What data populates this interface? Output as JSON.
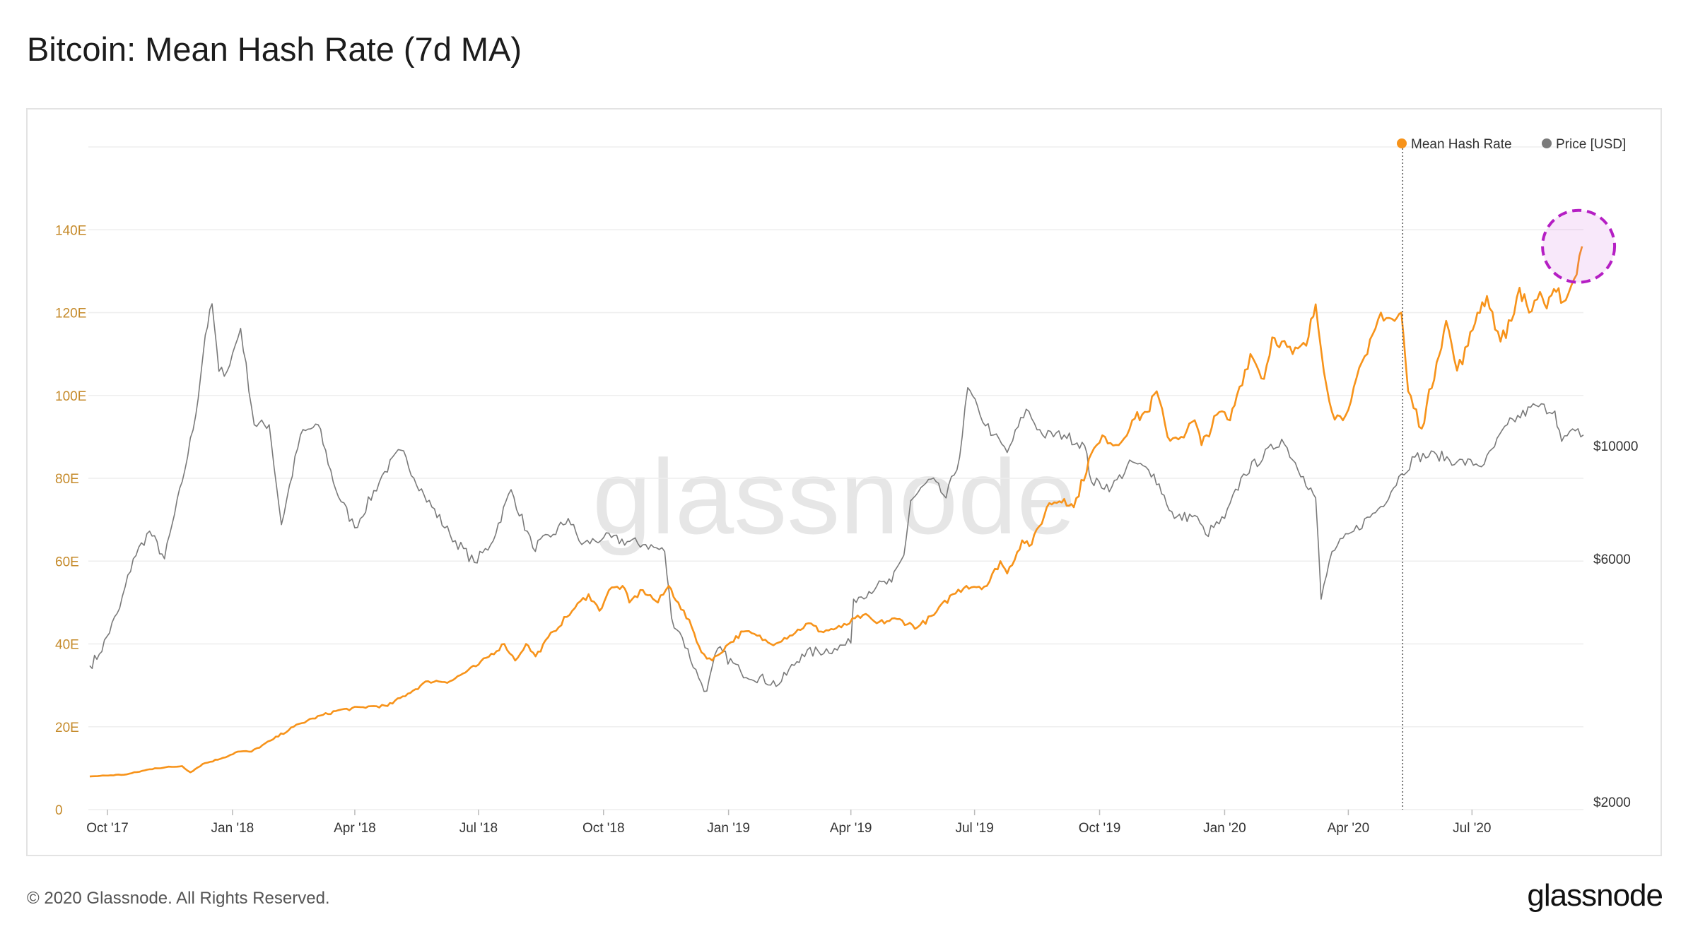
{
  "title": "Bitcoin: Mean Hash Rate (7d MA)",
  "footer": {
    "copyright": "© 2020 Glassnode. All Rights Reserved.",
    "logo": "glassnode"
  },
  "watermark": "glassnode",
  "colors": {
    "hash_rate": "#f7931a",
    "price": "#7a7a7a",
    "highlight": "#b51fc4",
    "grid": "#eeeeee"
  },
  "chart_data": {
    "type": "line",
    "x_range": [
      "2017-09-18",
      "2020-09-21"
    ],
    "x_ticks": [
      "Oct '17",
      "Jan '18",
      "Apr '18",
      "Jul '18",
      "Oct '18",
      "Jan '19",
      "Apr '19",
      "Jul '19",
      "Oct '19",
      "Jan '20",
      "Apr '20",
      "Jul '20"
    ],
    "y_left": {
      "ticks": [
        "0",
        "20E",
        "40E",
        "60E",
        "80E",
        "100E",
        "120E",
        "140E"
      ],
      "range": [
        0,
        160
      ]
    },
    "y_right": {
      "scale": "log",
      "ticks": [
        "$2000",
        "$6000",
        "$10000"
      ],
      "range": [
        2000,
        60000
      ]
    },
    "legend": {
      "position": "top-right",
      "entries": [
        "Mean Hash Rate",
        "Price [USD]"
      ]
    },
    "grid": true,
    "marker_date": "2020-05-11",
    "highlight_circle": {
      "date": "2020-09-20",
      "value": 136
    },
    "series": [
      {
        "name": "Mean Hash Rate",
        "axis": "left",
        "points": [
          [
            "2017-09-18",
            8
          ],
          [
            "2017-10-15",
            8.5
          ],
          [
            "2017-11-05",
            10
          ],
          [
            "2017-11-25",
            10.5
          ],
          [
            "2017-12-01",
            9
          ],
          [
            "2017-12-10",
            11
          ],
          [
            "2017-12-25",
            12.5
          ],
          [
            "2018-01-05",
            14
          ],
          [
            "2018-01-15",
            14
          ],
          [
            "2018-01-31",
            17
          ],
          [
            "2018-02-15",
            20
          ],
          [
            "2018-03-01",
            22
          ],
          [
            "2018-03-20",
            24
          ],
          [
            "2018-04-15",
            25
          ],
          [
            "2018-04-25",
            25
          ],
          [
            "2018-05-10",
            28
          ],
          [
            "2018-05-25",
            31
          ],
          [
            "2018-06-10",
            31
          ],
          [
            "2018-07-01",
            35
          ],
          [
            "2018-07-20",
            40
          ],
          [
            "2018-07-28",
            36
          ],
          [
            "2018-08-05",
            40
          ],
          [
            "2018-08-12",
            37
          ],
          [
            "2018-08-25",
            43
          ],
          [
            "2018-09-08",
            48
          ],
          [
            "2018-09-20",
            52
          ],
          [
            "2018-09-28",
            48
          ],
          [
            "2018-10-05",
            53
          ],
          [
            "2018-10-15",
            54
          ],
          [
            "2018-10-20",
            50
          ],
          [
            "2018-10-30",
            53
          ],
          [
            "2018-11-10",
            50
          ],
          [
            "2018-11-18",
            54
          ],
          [
            "2018-11-25",
            50
          ],
          [
            "2018-12-05",
            44
          ],
          [
            "2018-12-12",
            38
          ],
          [
            "2018-12-20",
            36
          ],
          [
            "2019-01-01",
            40
          ],
          [
            "2019-01-12",
            43
          ],
          [
            "2019-01-22",
            42
          ],
          [
            "2019-02-01",
            40
          ],
          [
            "2019-02-15",
            42
          ],
          [
            "2019-03-01",
            45
          ],
          [
            "2019-03-10",
            43
          ],
          [
            "2019-03-25",
            44
          ],
          [
            "2019-04-10",
            47
          ],
          [
            "2019-04-20",
            45
          ],
          [
            "2019-05-05",
            46
          ],
          [
            "2019-05-20",
            44
          ],
          [
            "2019-06-01",
            47
          ],
          [
            "2019-06-15",
            52
          ],
          [
            "2019-06-25",
            54
          ],
          [
            "2019-07-10",
            54
          ],
          [
            "2019-07-20",
            60
          ],
          [
            "2019-07-25",
            57
          ],
          [
            "2019-08-05",
            65
          ],
          [
            "2019-08-12",
            64
          ],
          [
            "2019-08-25",
            74
          ],
          [
            "2019-09-05",
            75
          ],
          [
            "2019-09-12",
            73
          ],
          [
            "2019-09-25",
            86
          ],
          [
            "2019-10-05",
            90
          ],
          [
            "2019-10-15",
            88
          ],
          [
            "2019-10-25",
            94
          ],
          [
            "2019-11-05",
            96
          ],
          [
            "2019-11-12",
            101
          ],
          [
            "2019-11-20",
            90
          ],
          [
            "2019-11-30",
            90
          ],
          [
            "2019-12-10",
            94
          ],
          [
            "2019-12-15",
            88
          ],
          [
            "2019-12-28",
            96
          ],
          [
            "2020-01-05",
            94
          ],
          [
            "2020-01-10",
            100
          ],
          [
            "2020-01-20",
            110
          ],
          [
            "2020-01-30",
            104
          ],
          [
            "2020-02-05",
            114
          ],
          [
            "2020-02-12",
            113
          ],
          [
            "2020-02-20",
            110
          ],
          [
            "2020-03-01",
            112
          ],
          [
            "2020-03-08",
            122
          ],
          [
            "2020-03-12",
            111
          ],
          [
            "2020-03-20",
            96
          ],
          [
            "2020-03-28",
            94
          ],
          [
            "2020-04-05",
            102
          ],
          [
            "2020-04-15",
            110
          ],
          [
            "2020-04-25",
            120
          ],
          [
            "2020-05-05",
            118
          ],
          [
            "2020-05-10",
            120
          ],
          [
            "2020-05-15",
            101
          ],
          [
            "2020-05-25",
            92
          ],
          [
            "2020-06-05",
            108
          ],
          [
            "2020-06-12",
            118
          ],
          [
            "2020-06-20",
            106
          ],
          [
            "2020-06-28",
            112
          ],
          [
            "2020-07-05",
            120
          ],
          [
            "2020-07-12",
            124
          ],
          [
            "2020-07-22",
            113
          ],
          [
            "2020-07-30",
            118
          ],
          [
            "2020-08-05",
            126
          ],
          [
            "2020-08-12",
            120
          ],
          [
            "2020-08-20",
            125
          ],
          [
            "2020-08-25",
            121
          ],
          [
            "2020-09-01",
            125
          ],
          [
            "2020-09-08",
            123
          ],
          [
            "2020-09-14",
            128
          ],
          [
            "2020-09-20",
            136
          ]
        ]
      },
      {
        "name": "Price [USD]",
        "axis": "right",
        "points": [
          [
            "2017-09-18",
            3700
          ],
          [
            "2017-09-25",
            3900
          ],
          [
            "2017-10-10",
            4800
          ],
          [
            "2017-10-20",
            6000
          ],
          [
            "2017-11-01",
            6800
          ],
          [
            "2017-11-12",
            6000
          ],
          [
            "2017-11-25",
            8500
          ],
          [
            "2017-12-05",
            11500
          ],
          [
            "2017-12-12",
            16500
          ],
          [
            "2017-12-17",
            19000
          ],
          [
            "2017-12-22",
            14000
          ],
          [
            "2017-12-28",
            14000
          ],
          [
            "2018-01-07",
            17000
          ],
          [
            "2018-01-17",
            11000
          ],
          [
            "2018-01-28",
            11000
          ],
          [
            "2018-02-06",
            7000
          ],
          [
            "2018-02-20",
            10500
          ],
          [
            "2018-03-05",
            11000
          ],
          [
            "2018-03-18",
            8200
          ],
          [
            "2018-04-01",
            6900
          ],
          [
            "2018-04-23",
            8900
          ],
          [
            "2018-05-05",
            9800
          ],
          [
            "2018-05-22",
            8000
          ],
          [
            "2018-06-10",
            6700
          ],
          [
            "2018-06-28",
            5900
          ],
          [
            "2018-07-10",
            6400
          ],
          [
            "2018-07-25",
            8200
          ],
          [
            "2018-08-10",
            6300
          ],
          [
            "2018-08-25",
            6700
          ],
          [
            "2018-09-05",
            7200
          ],
          [
            "2018-09-15",
            6400
          ],
          [
            "2018-10-01",
            6600
          ],
          [
            "2018-11-01",
            6400
          ],
          [
            "2018-11-15",
            6200
          ],
          [
            "2018-11-20",
            4600
          ],
          [
            "2018-11-28",
            4200
          ],
          [
            "2018-12-10",
            3500
          ],
          [
            "2018-12-16",
            3300
          ],
          [
            "2018-12-24",
            4000
          ],
          [
            "2019-01-10",
            3600
          ],
          [
            "2019-02-07",
            3400
          ],
          [
            "2019-02-24",
            3900
          ],
          [
            "2019-03-20",
            4000
          ],
          [
            "2019-04-01",
            4100
          ],
          [
            "2019-04-03",
            5000
          ],
          [
            "2019-04-20",
            5300
          ],
          [
            "2019-05-01",
            5400
          ],
          [
            "2019-05-10",
            6100
          ],
          [
            "2019-05-15",
            7800
          ],
          [
            "2019-05-30",
            8600
          ],
          [
            "2019-06-10",
            7900
          ],
          [
            "2019-06-20",
            9500
          ],
          [
            "2019-06-26",
            13000
          ],
          [
            "2019-07-05",
            11500
          ],
          [
            "2019-07-15",
            10500
          ],
          [
            "2019-07-25",
            9700
          ],
          [
            "2019-08-08",
            11800
          ],
          [
            "2019-08-20",
            10500
          ],
          [
            "2019-09-05",
            10500
          ],
          [
            "2019-09-20",
            10000
          ],
          [
            "2019-09-25",
            8500
          ],
          [
            "2019-10-10",
            8300
          ],
          [
            "2019-10-25",
            9300
          ],
          [
            "2019-11-10",
            8800
          ],
          [
            "2019-11-25",
            7200
          ],
          [
            "2019-12-10",
            7300
          ],
          [
            "2019-12-18",
            6700
          ],
          [
            "2020-01-01",
            7200
          ],
          [
            "2020-01-15",
            8800
          ],
          [
            "2020-02-12",
            10300
          ],
          [
            "2020-02-28",
            8700
          ],
          [
            "2020-03-08",
            7900
          ],
          [
            "2020-03-12",
            5000
          ],
          [
            "2020-03-20",
            6200
          ],
          [
            "2020-04-05",
            6800
          ],
          [
            "2020-04-25",
            7600
          ],
          [
            "2020-05-10",
            8800
          ],
          [
            "2020-05-20",
            9500
          ],
          [
            "2020-06-05",
            9600
          ],
          [
            "2020-06-20",
            9300
          ],
          [
            "2020-07-10",
            9200
          ],
          [
            "2020-07-27",
            11000
          ],
          [
            "2020-08-17",
            12000
          ],
          [
            "2020-08-31",
            11700
          ],
          [
            "2020-09-05",
            10200
          ],
          [
            "2020-09-15",
            10700
          ],
          [
            "2020-09-21",
            10500
          ]
        ]
      }
    ]
  }
}
